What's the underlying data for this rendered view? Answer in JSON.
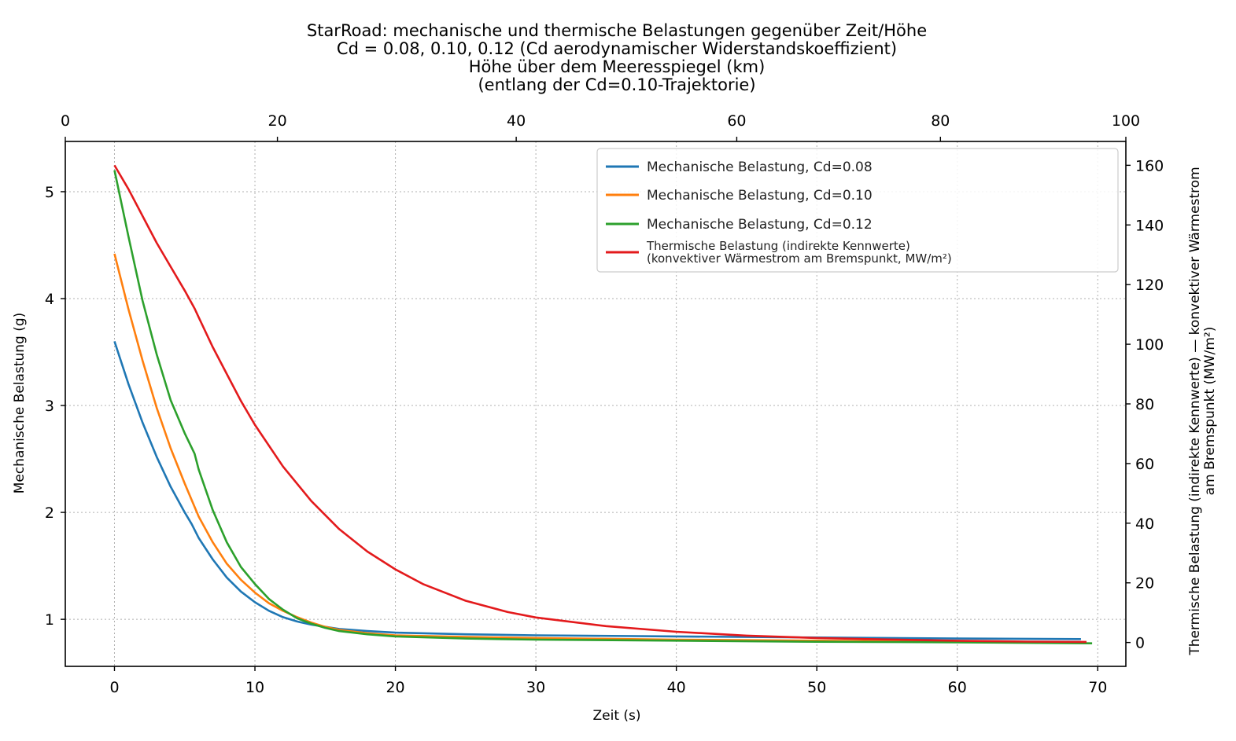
{
  "chart_data": {
    "type": "line",
    "title_lines": [
      "StarRoad: mechanische und thermische Belastungen gegenüber Zeit/Höhe",
      "Cd = 0.08, 0.10, 0.12 (Cd aerodynamischer Widerstandskoeffizient)",
      "Höhe über dem Meeresspiegel (km)",
      "(entlang der Cd=0.10-Trajektorie)"
    ],
    "xlabel": "Zeit (s)",
    "ylabel": "Mechanische Belastung (g)",
    "y2label_lines": [
      "Thermische Belastung (indirekte Kennwerte) — konvektiver Wärmestrom",
      "am Bremspunkt (MW/m²)"
    ],
    "xlim": [
      -3.5,
      72
    ],
    "ylim": [
      0.56,
      5.47
    ],
    "y2lim": [
      -8,
      168
    ],
    "x_ticks": [
      0,
      10,
      20,
      30,
      40,
      50,
      60,
      70
    ],
    "x_tick_labels": [
      "0",
      "10",
      "20",
      "30",
      "40",
      "50",
      "60",
      "70"
    ],
    "y_ticks": [
      1,
      2,
      3,
      4,
      5
    ],
    "y_tick_labels": [
      "1",
      "2",
      "3",
      "4",
      "5"
    ],
    "y2_ticks": [
      0,
      20,
      40,
      60,
      80,
      100,
      120,
      140,
      160
    ],
    "y2_tick_labels": [
      "0",
      "20",
      "40",
      "60",
      "80",
      "100",
      "120",
      "140",
      "160"
    ],
    "top_axis": {
      "tick_labels": [
        "0",
        "20",
        "40",
        "60",
        "80",
        "100"
      ],
      "tick_time_positions": [
        -3.5,
        11.6,
        28.6,
        44.3,
        58.8,
        72
      ]
    },
    "grid": true,
    "legend_position": "top-right",
    "series": [
      {
        "name": "Mechanische Belastung, Cd=0.08",
        "color": "#1f77b4",
        "axis": "left",
        "x": [
          0,
          1,
          2,
          3,
          4,
          5,
          5.5,
          6,
          7,
          8,
          9,
          10,
          11,
          12,
          13,
          14,
          15,
          16,
          18,
          20,
          25,
          30,
          40,
          50,
          60,
          68.8
        ],
        "y": [
          3.6,
          3.2,
          2.84,
          2.52,
          2.24,
          2.0,
          1.89,
          1.76,
          1.56,
          1.39,
          1.26,
          1.16,
          1.08,
          1.02,
          0.98,
          0.95,
          0.93,
          0.91,
          0.89,
          0.875,
          0.86,
          0.85,
          0.84,
          0.83,
          0.82,
          0.815
        ]
      },
      {
        "name": "Mechanische Belastung, Cd=0.10",
        "color": "#ff7f0e",
        "axis": "left",
        "x": [
          0,
          1,
          2,
          3,
          4,
          5,
          6,
          7,
          8,
          9,
          10,
          11,
          12,
          13,
          14,
          15,
          16,
          18,
          20,
          25,
          30,
          40,
          50,
          60,
          69.2
        ],
        "y": [
          4.42,
          3.9,
          3.42,
          2.98,
          2.6,
          2.27,
          1.96,
          1.72,
          1.52,
          1.37,
          1.25,
          1.15,
          1.08,
          1.02,
          0.97,
          0.93,
          0.9,
          0.87,
          0.85,
          0.835,
          0.825,
          0.81,
          0.8,
          0.79,
          0.785
        ]
      },
      {
        "name": "Mechanische Belastung, Cd=0.12",
        "color": "#2ca02c",
        "axis": "left",
        "x": [
          0,
          1,
          2,
          3,
          4,
          5,
          5.7,
          6,
          7,
          8,
          9,
          10,
          11,
          12,
          13,
          14,
          15,
          16,
          18,
          20,
          25,
          30,
          40,
          50,
          60,
          69.6
        ],
        "y": [
          5.2,
          4.58,
          3.98,
          3.48,
          3.05,
          2.74,
          2.55,
          2.4,
          2.02,
          1.72,
          1.49,
          1.33,
          1.19,
          1.09,
          1.01,
          0.96,
          0.92,
          0.89,
          0.86,
          0.84,
          0.82,
          0.81,
          0.8,
          0.79,
          0.785,
          0.775
        ]
      },
      {
        "name": "Thermische Belastung (indirekte Kennwerte)",
        "name_line2": "(konvektiver Wärmestrom am Bremspunkt, MW/m²)",
        "color": "#e31a1c",
        "axis": "right",
        "x": [
          0,
          1,
          2,
          3,
          4,
          5,
          5.7,
          6,
          7,
          8,
          9,
          10,
          12,
          14,
          16,
          18,
          20,
          22,
          25,
          28,
          30,
          35,
          40,
          45,
          50,
          55,
          60,
          65,
          69.2
        ],
        "y": [
          160,
          152,
          143,
          134,
          126,
          118,
          112,
          109,
          99,
          90,
          81,
          73,
          59,
          47.5,
          38,
          30.5,
          24.5,
          19.5,
          14,
          10.2,
          8.4,
          5.5,
          3.6,
          2.3,
          1.5,
          1.0,
          0.6,
          0.3,
          0.2
        ]
      }
    ]
  }
}
